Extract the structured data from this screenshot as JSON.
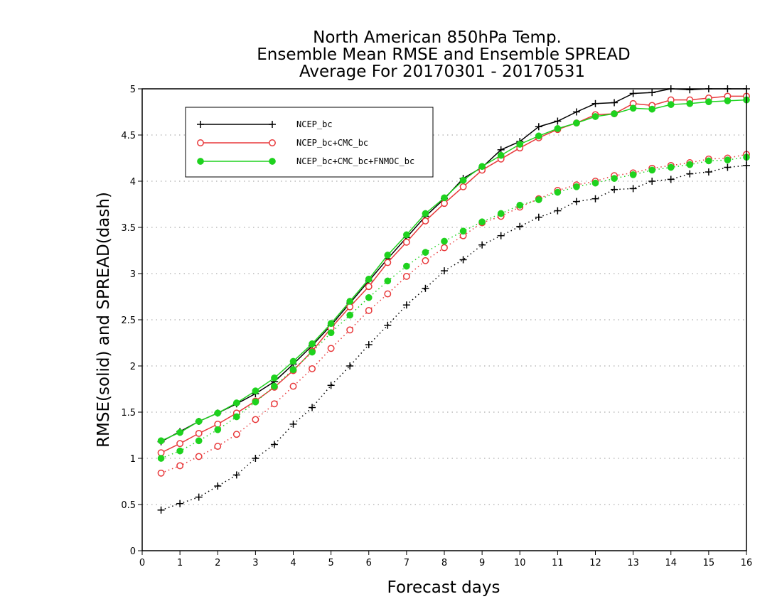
{
  "chart_data": {
    "type": "line",
    "title_lines": [
      "North American 850hPa Temp.",
      "Ensemble Mean RMSE and Ensemble SPREAD",
      "Average For 20170301 - 20170531"
    ],
    "xlabel": "Forecast days",
    "ylabel": "RMSE(solid) and SPREAD(dash)",
    "xlim": [
      0,
      16
    ],
    "ylim": [
      0,
      5
    ],
    "xticks": [
      "0",
      "1",
      "2",
      "3",
      "4",
      "5",
      "6",
      "7",
      "8",
      "9",
      "10",
      "11",
      "12",
      "13",
      "14",
      "15",
      "16"
    ],
    "yticks": [
      "0",
      "0.5",
      "1",
      "1.5",
      "2",
      "2.5",
      "3",
      "3.5",
      "4",
      "4.5",
      "5"
    ],
    "grid": "horizontal dotted",
    "legend_position": "top-left",
    "x": [
      0.5,
      1,
      1.5,
      2,
      2.5,
      3,
      3.5,
      4,
      4.5,
      5,
      5.5,
      6,
      6.5,
      7,
      7.5,
      8,
      8.5,
      9,
      9.5,
      10,
      10.5,
      11,
      11.5,
      12,
      12.5,
      13,
      13.5,
      14,
      14.5,
      15,
      15.5,
      16
    ],
    "series": [
      {
        "name": "NCEP_bc",
        "color": "#000000",
        "marker": "plus",
        "rmse": [
          1.18,
          1.29,
          1.4,
          1.49,
          1.59,
          1.7,
          1.83,
          2.02,
          2.22,
          2.44,
          2.68,
          2.92,
          3.16,
          3.39,
          3.62,
          3.81,
          4.03,
          4.15,
          4.34,
          4.43,
          4.59,
          4.65,
          4.75,
          4.84,
          4.85,
          4.95,
          4.96,
          5.02,
          4.99,
          5.02,
          5.0,
          5.0
        ],
        "spread": [
          0.44,
          0.51,
          0.58,
          0.7,
          0.82,
          1.0,
          1.15,
          1.37,
          1.55,
          1.79,
          2.0,
          2.23,
          2.44,
          2.66,
          2.84,
          3.03,
          3.15,
          3.31,
          3.41,
          3.51,
          3.61,
          3.68,
          3.78,
          3.81,
          3.91,
          3.92,
          4.0,
          4.02,
          4.08,
          4.1,
          4.15,
          4.17
        ]
      },
      {
        "name": "NCEP_bc+CMC_bc",
        "color": "#e8393b",
        "marker": "open-circle",
        "rmse": [
          1.06,
          1.16,
          1.27,
          1.37,
          1.49,
          1.62,
          1.77,
          1.95,
          2.16,
          2.41,
          2.64,
          2.86,
          3.12,
          3.34,
          3.57,
          3.76,
          3.94,
          4.12,
          4.24,
          4.36,
          4.47,
          4.56,
          4.63,
          4.72,
          4.73,
          4.84,
          4.82,
          4.88,
          4.88,
          4.9,
          4.92,
          4.92
        ],
        "spread": [
          0.84,
          0.92,
          1.02,
          1.13,
          1.26,
          1.42,
          1.59,
          1.78,
          1.97,
          2.19,
          2.39,
          2.6,
          2.78,
          2.97,
          3.14,
          3.28,
          3.41,
          3.55,
          3.62,
          3.72,
          3.81,
          3.9,
          3.96,
          4.0,
          4.06,
          4.09,
          4.14,
          4.17,
          4.2,
          4.24,
          4.25,
          4.29
        ]
      },
      {
        "name": "NCEP_bc+CMC_bc+FNMOC_bc",
        "color": "#1ed21e",
        "marker": "filled-circle",
        "rmse": [
          1.19,
          1.28,
          1.4,
          1.49,
          1.6,
          1.73,
          1.87,
          2.05,
          2.24,
          2.46,
          2.7,
          2.94,
          3.2,
          3.42,
          3.65,
          3.82,
          4.01,
          4.16,
          4.28,
          4.4,
          4.49,
          4.57,
          4.63,
          4.7,
          4.73,
          4.79,
          4.78,
          4.83,
          4.84,
          4.86,
          4.87,
          4.88
        ],
        "spread": [
          1.0,
          1.08,
          1.19,
          1.31,
          1.45,
          1.61,
          1.78,
          1.96,
          2.15,
          2.36,
          2.55,
          2.74,
          2.92,
          3.08,
          3.23,
          3.35,
          3.46,
          3.56,
          3.65,
          3.74,
          3.8,
          3.88,
          3.94,
          3.98,
          4.03,
          4.07,
          4.12,
          4.15,
          4.18,
          4.22,
          4.23,
          4.26
        ]
      }
    ]
  }
}
